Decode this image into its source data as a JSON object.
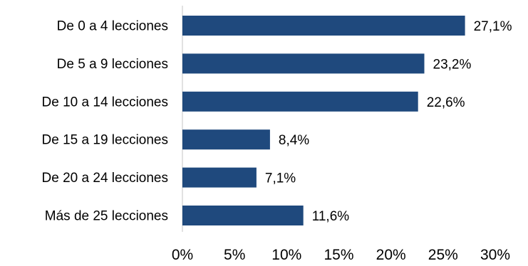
{
  "chart_data": {
    "type": "bar",
    "orientation": "horizontal",
    "categories": [
      "De 0 a 4 lecciones",
      "De 5 a 9 lecciones",
      "De 10 a 14 lecciones",
      "De 15 a 19 lecciones",
      "De 20 a 24 lecciones",
      "Más de 25 lecciones"
    ],
    "values": [
      27.1,
      23.2,
      22.6,
      8.4,
      7.1,
      11.6
    ],
    "value_labels": [
      "27,1%",
      "23,2%",
      "22,6%",
      "8,4%",
      "7,1%",
      "11,6%"
    ],
    "x_ticks": [
      0,
      5,
      10,
      15,
      20,
      25,
      30
    ],
    "x_tick_labels": [
      "0%",
      "5%",
      "10%",
      "15%",
      "20%",
      "25%",
      "30%"
    ],
    "xlim": [
      0,
      30
    ],
    "grid": false,
    "legend": "none",
    "bar_color": "#1F497D"
  }
}
